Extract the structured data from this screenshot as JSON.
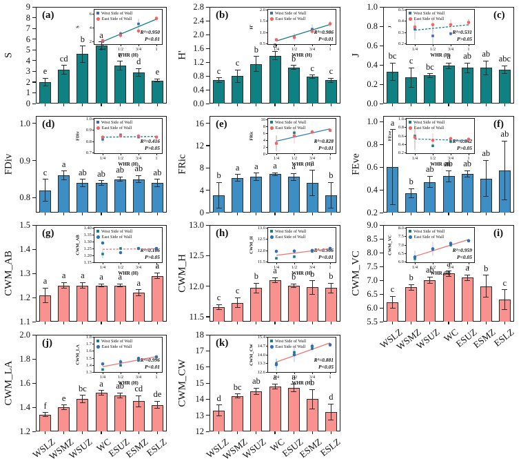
{
  "figure_title": "",
  "shared": {
    "categories": [
      "WSLZ",
      "WSMZ",
      "WSUZ",
      "WC",
      "ESUZ",
      "ESMZ",
      "ESLZ"
    ],
    "legend": {
      "west": "West Side of Wall",
      "east": "East Side of Wall"
    },
    "inset_xlabel": "WHR (H)",
    "inset_xticks": [
      "1/4",
      "1/2",
      "3/4",
      "1"
    ],
    "colors": {
      "teal_bar": "#0f8183",
      "blue_bar": "#3d8ec4",
      "salmon_bar": "#f9918f",
      "west_marker_blue": "#3a6ab2",
      "east_marker_red": "#f4635f",
      "west_marker_teal": "#0f8183",
      "east_marker_blue": "#2d6fb8",
      "trend_teal": "#0f8183",
      "trend_blue": "#2d7fc0",
      "trend_red": "#f4726f"
    }
  },
  "chart_data": [
    {
      "type": "bar",
      "id": "a",
      "panel_letter": "(a)",
      "label_pos": "left",
      "col": 0,
      "row": 0,
      "show_xlabels": false,
      "ylabel": "S",
      "ylim": [
        0,
        9
      ],
      "yticks": [
        "0",
        "1",
        "2",
        "3",
        "4",
        "5",
        "6",
        "7",
        "8",
        "9"
      ],
      "categories": [
        "WSLZ",
        "WSMZ",
        "WSUZ",
        "WC",
        "ESUZ",
        "ESMZ",
        "ESLZ"
      ],
      "values": [
        2.0,
        3.15,
        4.6,
        5.4,
        3.55,
        2.9,
        2.15
      ],
      "errors": [
        0.35,
        0.4,
        0.75,
        0.35,
        0.4,
        0.35,
        0.15
      ],
      "letters": [
        "e",
        "cd",
        "b",
        "a",
        "c",
        "d",
        "e"
      ],
      "bar_color": "#0f8183",
      "inset": {
        "pos": "right",
        "ylabel": "S",
        "ylim": [
          1.5,
          6.8
        ],
        "yticks": [
          "2",
          "4",
          "6"
        ],
        "r2_label": "R²=0.950",
        "p_label": "P<0.01",
        "line_style": "solid",
        "line_color": "#0f8183",
        "west_color": "#3a6ab2",
        "east_color": "#f4635f",
        "x": [
          0.25,
          0.5,
          0.75,
          1
        ],
        "west": [
          2.0,
          3.15,
          4.6,
          5.4
        ],
        "east": [
          2.15,
          2.9,
          3.55,
          5.4
        ]
      }
    },
    {
      "type": "bar",
      "id": "b",
      "panel_letter": "(b)",
      "label_pos": "left",
      "col": 1,
      "row": 0,
      "show_xlabels": false,
      "ylabel": "H'",
      "ylim": [
        0,
        2.8
      ],
      "yticks": [
        "0.0",
        "0.4",
        "0.8",
        "1.2",
        "1.6",
        "2.0",
        "2.4",
        "2.8"
      ],
      "categories": [
        "WSLZ",
        "WSMZ",
        "WSUZ",
        "WC",
        "ESUZ",
        "ESMZ",
        "ESLZ"
      ],
      "values": [
        0.68,
        0.8,
        1.15,
        1.39,
        1.05,
        0.78,
        0.68
      ],
      "errors": [
        0.07,
        0.18,
        0.22,
        0.12,
        0.06,
        0.05,
        0.06
      ],
      "letters": [
        "c",
        "c",
        "b",
        "a",
        "b",
        "c",
        "c"
      ],
      "bar_color": "#0f8183",
      "inset": {
        "pos": "right",
        "ylabel": "H'",
        "ylim": [
          0.45,
          2.05
        ],
        "yticks": [
          "0.5",
          "1.0",
          "1.5",
          "2.0"
        ],
        "r2_label": "R²=0.986",
        "p_label": "P<0.01",
        "line_style": "solid",
        "line_color": "#0f8183",
        "west_color": "#3a6ab2",
        "east_color": "#f4635f",
        "x": [
          0.25,
          0.5,
          0.75,
          1
        ],
        "west": [
          0.68,
          0.8,
          1.15,
          1.39
        ],
        "east": [
          0.68,
          0.78,
          1.05,
          1.39
        ]
      }
    },
    {
      "type": "bar",
      "id": "c",
      "panel_letter": "(c)",
      "label_pos": "right",
      "col": 2,
      "row": 0,
      "show_xlabels": false,
      "ylabel": "J",
      "ylim": [
        0,
        1.0
      ],
      "yticks": [
        "0.0",
        "0.2",
        "0.4",
        "0.6",
        "0.8",
        "1.0"
      ],
      "categories": [
        "WSLZ",
        "WSMZ",
        "WSUZ",
        "WC",
        "ESUZ",
        "ESMZ",
        "ESLZ"
      ],
      "values": [
        0.33,
        0.27,
        0.29,
        0.39,
        0.37,
        0.37,
        0.35
      ],
      "errors": [
        0.09,
        0.1,
        0.02,
        0.03,
        0.05,
        0.07,
        0.04
      ],
      "letters": [
        "bc",
        "c",
        "bc",
        "a",
        "ab",
        "ab",
        "abc"
      ],
      "bar_color": "#0f8183",
      "inset": {
        "pos": "left",
        "ylabel": "J",
        "ylim": [
          0.19,
          0.51
        ],
        "yticks": [
          "0.2",
          "0.3",
          "0.4",
          "0.5"
        ],
        "r2_label": "R²=0.531",
        "p_label": "P>0.05",
        "line_style": "dashed",
        "line_color": "#0f8183",
        "west_color": "#3a6ab2",
        "east_color": "#f4635f",
        "x": [
          0.25,
          0.5,
          0.75,
          1
        ],
        "west": [
          0.33,
          0.27,
          0.29,
          0.39
        ],
        "east": [
          0.35,
          0.37,
          0.37,
          0.39
        ]
      }
    },
    {
      "type": "bar",
      "id": "d",
      "panel_letter": "(d)",
      "label_pos": "left",
      "col": 0,
      "row": 1,
      "show_xlabels": false,
      "ylabel": "FDiv",
      "ylim": [
        0.76,
        1.02
      ],
      "yticks": [
        "0.8",
        "0.9",
        "1.0"
      ],
      "categories": [
        "WSLZ",
        "WSMZ",
        "WSUZ",
        "WC",
        "ESUZ",
        "ESMZ",
        "ESLZ"
      ],
      "values": [
        0.82,
        0.86,
        0.84,
        0.84,
        0.85,
        0.85,
        0.84
      ],
      "errors": [
        0.03,
        0.012,
        0.01,
        0.006,
        0.006,
        0.01,
        0.01
      ],
      "letters": [
        "c",
        "a",
        "ab",
        "ab",
        "ab",
        "ab",
        "ab"
      ],
      "bar_color": "#3d8ec4",
      "inset": {
        "pos": "right",
        "ylabel": "FDiv",
        "ylim": [
          0.69,
          1.01
        ],
        "yticks": [
          "0.7",
          "0.8",
          "0.9",
          "1.0"
        ],
        "r2_label": "R²=0.416",
        "p_label": "P>0.05",
        "line_style": "dashed",
        "line_color": "#0f8183",
        "west_color": "#3a6ab2",
        "east_color": "#f4635f",
        "x": [
          0.25,
          0.5,
          0.75,
          1
        ],
        "west": [
          0.82,
          0.86,
          0.84,
          0.84
        ],
        "east": [
          0.84,
          0.85,
          0.85,
          0.84
        ]
      }
    },
    {
      "type": "bar",
      "id": "e",
      "panel_letter": "(e)",
      "label_pos": "left",
      "col": 1,
      "row": 1,
      "show_xlabels": false,
      "ylabel": "FRic",
      "ylim": [
        0,
        17.3
      ],
      "yticks": [
        "0",
        "4",
        "8",
        "12",
        "16"
      ],
      "categories": [
        "WSLZ",
        "WSMZ",
        "WSUZ",
        "WC",
        "ESUZ",
        "ESMZ",
        "ESLZ"
      ],
      "values": [
        3.1,
        6.2,
        6.4,
        6.9,
        6.4,
        5.3,
        3.1
      ],
      "errors": [
        2.3,
        0.6,
        0.7,
        0.25,
        0.6,
        2.3,
        2.3
      ],
      "letters": [
        "b",
        "a",
        "a",
        "a",
        "a",
        "a",
        "b"
      ],
      "bar_color": "#3d8ec4",
      "inset": {
        "pos": "right",
        "ylabel": "FRic",
        "ylim": [
          0,
          10.5
        ],
        "yticks": [
          "0",
          "2",
          "4",
          "6",
          "8",
          "10"
        ],
        "r2_label": "R²=0.828",
        "p_label": "P<0.01",
        "line_style": "solid",
        "line_color": "#2d7fc0",
        "west_color": "#0f8183",
        "east_color": "#f4635f",
        "x": [
          0.25,
          0.5,
          0.75,
          1
        ],
        "west": [
          3.1,
          6.2,
          6.4,
          6.9
        ],
        "east": [
          3.1,
          5.3,
          6.4,
          6.9
        ]
      }
    },
    {
      "type": "bar",
      "id": "f",
      "panel_letter": "(f)",
      "label_pos": "right",
      "col": 2,
      "row": 1,
      "show_xlabels": false,
      "ylabel": "FEve",
      "ylim": [
        0.2,
        1.05
      ],
      "yticks": [
        "0.2",
        "0.4",
        "0.6",
        "0.8",
        "1.0"
      ],
      "categories": [
        "WSLZ",
        "WSMZ",
        "WSUZ",
        "WC",
        "ESUZ",
        "ESMZ",
        "ESLZ"
      ],
      "values": [
        0.6,
        0.37,
        0.47,
        0.52,
        0.54,
        0.5,
        0.57
      ],
      "errors": [
        0.33,
        0.04,
        0.05,
        0.05,
        0.03,
        0.16,
        0.26
      ],
      "letters": [
        "a",
        "b",
        "ab",
        "ab",
        "ab",
        "ab",
        "ab"
      ],
      "bar_color": "#3d8ec4",
      "inset": {
        "pos": "left",
        "ylabel": "FEve",
        "ylim": [
          0.18,
          1.02
        ],
        "yticks": [
          "0.2",
          "0.4",
          "0.6",
          "0.8",
          "1.0"
        ],
        "r2_label": "R²=0.842",
        "p_label": "P>0.05",
        "line_style": "dashed",
        "line_color": "#2d7fc0",
        "west_color": "#0f8183",
        "east_color": "#f4635f",
        "x": [
          0.25,
          0.5,
          0.75,
          1
        ],
        "west": [
          0.6,
          0.37,
          0.47,
          0.52
        ],
        "east": [
          0.57,
          0.5,
          0.54,
          0.52
        ]
      }
    },
    {
      "type": "bar",
      "id": "g",
      "panel_letter": "(g)",
      "label_pos": "left",
      "col": 0,
      "row": 2,
      "show_xlabels": false,
      "ylabel": "CWM_AB",
      "ylim": [
        1.1,
        1.5
      ],
      "yticks": [
        "1.1",
        "1.2",
        "1.3",
        "1.4",
        "1.5"
      ],
      "categories": [
        "WSLZ",
        "WSMZ",
        "WSUZ",
        "WC",
        "ESUZ",
        "ESMZ",
        "ESLZ"
      ],
      "values": [
        1.21,
        1.25,
        1.25,
        1.25,
        1.25,
        1.22,
        1.29
      ],
      "errors": [
        0.03,
        0.012,
        0.012,
        0.006,
        0.006,
        0.012,
        0.012
      ],
      "letters": [
        "a",
        "a",
        "a",
        "a",
        "a",
        "a",
        "a"
      ],
      "bar_color": "#f9918f",
      "inset": {
        "pos": "right",
        "ylabel": "CWM_AB",
        "ylim": [
          1.145,
          1.405
        ],
        "yticks": [
          "1.15",
          "1.20",
          "1.25",
          "1.30",
          "1.35",
          "1.40"
        ],
        "r2_label": "R²=0.166",
        "p_label": "P>0.05",
        "line_style": "dashed",
        "line_color": "#f4726f",
        "west_color": "#0f8183",
        "east_color": "#2d6fb8",
        "x": [
          0.25,
          0.5,
          0.75,
          1
        ],
        "west": [
          1.21,
          1.25,
          1.25,
          1.25
        ],
        "east": [
          1.29,
          1.22,
          1.25,
          1.25
        ]
      }
    },
    {
      "type": "bar",
      "id": "h",
      "panel_letter": "(h)",
      "label_pos": "left",
      "col": 1,
      "row": 2,
      "show_xlabels": false,
      "ylabel": "CWM_H",
      "ylim": [
        11.42,
        13.0
      ],
      "yticks": [
        "11.5",
        "12.0",
        "12.5",
        "13.0"
      ],
      "categories": [
        "WSLZ",
        "WSMZ",
        "WSUZ",
        "WC",
        "ESUZ",
        "ESMZ",
        "ESLZ"
      ],
      "values": [
        11.66,
        11.73,
        11.97,
        12.1,
        12.01,
        11.98,
        11.97
      ],
      "errors": [
        0.04,
        0.08,
        0.08,
        0.04,
        0.03,
        0.11,
        0.08
      ],
      "letters": [
        "c",
        "c",
        "b",
        "a",
        "b",
        "b",
        "b"
      ],
      "bar_color": "#f9918f",
      "inset": {
        "pos": "right",
        "ylabel": "CWM_H",
        "ylim": [
          11.45,
          13.05
        ],
        "yticks": [
          "11.5",
          "12.0",
          "12.5",
          "13.0"
        ],
        "r2_label": "R²=0.986",
        "p_label": "P<0.01",
        "line_style": "solid",
        "line_color": "#f4726f",
        "west_color": "#0f8183",
        "east_color": "#2d6fb8",
        "x": [
          0.25,
          0.5,
          0.75,
          1
        ],
        "west": [
          11.66,
          11.73,
          11.97,
          12.1
        ],
        "east": [
          11.97,
          11.98,
          12.01,
          12.1
        ]
      }
    },
    {
      "type": "bar",
      "id": "i",
      "panel_letter": "(i)",
      "label_pos": "right",
      "col": 2,
      "row": 2,
      "show_xlabels": true,
      "ylabel": "CWM_VC",
      "ylim": [
        5.5,
        9.0
      ],
      "yticks": [
        "5.5",
        "6.0",
        "6.5",
        "7.0",
        "7.5",
        "8.0",
        "8.5",
        "9.0"
      ],
      "categories": [
        "WSLZ",
        "WSMZ",
        "WSUZ",
        "WC",
        "ESUZ",
        "ESMZ",
        "ESLZ"
      ],
      "values": [
        6.2,
        6.75,
        7.0,
        7.25,
        7.1,
        6.78,
        6.3
      ],
      "errors": [
        0.22,
        0.1,
        0.12,
        0.1,
        0.1,
        0.4,
        0.36
      ],
      "letters": [
        "c",
        "b",
        "ab",
        "a",
        "a",
        "b",
        "c"
      ],
      "bar_color": "#f9918f",
      "inset": {
        "pos": "left",
        "ylabel": "CWM_VC",
        "ylim": [
          5.95,
          8.05
        ],
        "yticks": [
          "6.0",
          "6.5",
          "7.0",
          "7.5",
          "8.0"
        ],
        "r2_label": "R²=0.959",
        "p_label": "P<0.05",
        "line_style": "solid",
        "line_color": "#f4726f",
        "west_color": "#0f8183",
        "east_color": "#2d6fb8",
        "x": [
          0.25,
          0.5,
          0.75,
          1
        ],
        "west": [
          6.2,
          6.75,
          7.0,
          7.25
        ],
        "east": [
          6.3,
          6.78,
          7.1,
          7.25
        ]
      }
    },
    {
      "type": "bar",
      "id": "j",
      "panel_letter": "(j)",
      "label_pos": "left",
      "col": 0,
      "row": 3,
      "show_xlabels": true,
      "ylabel": "CWM_LA",
      "ylim": [
        1.2,
        2.0
      ],
      "yticks": [
        "1.2",
        "1.4",
        "1.6",
        "1.8",
        "2.0"
      ],
      "categories": [
        "WSLZ",
        "WSMZ",
        "WSUZ",
        "WC",
        "ESUZ",
        "ESMZ",
        "ESLZ"
      ],
      "values": [
        1.34,
        1.4,
        1.47,
        1.52,
        1.5,
        1.45,
        1.42
      ],
      "errors": [
        0.015,
        0.02,
        0.03,
        0.02,
        0.02,
        0.045,
        0.03
      ],
      "letters": [
        "f",
        "e",
        "bc",
        "a",
        "ab",
        "cd",
        "de"
      ],
      "bar_color": "#f9918f",
      "inset": {
        "pos": "right",
        "ylabel": "CWM_LA",
        "ylim": [
          1.295,
          1.805
        ],
        "yticks": [
          "1.3",
          "1.4",
          "1.5",
          "1.6",
          "1.7",
          "1.8"
        ],
        "r2_label": "R²=0.996",
        "p_label": "P<0.01",
        "line_style": "solid",
        "line_color": "#f4726f",
        "west_color": "#0f8183",
        "east_color": "#2d6fb8",
        "x": [
          0.25,
          0.5,
          0.75,
          1
        ],
        "west": [
          1.34,
          1.4,
          1.47,
          1.52
        ],
        "east": [
          1.42,
          1.45,
          1.5,
          1.52
        ]
      }
    },
    {
      "type": "bar",
      "id": "k",
      "panel_letter": "(k)",
      "label_pos": "left",
      "col": 1,
      "row": 3,
      "show_xlabels": true,
      "ylabel": "CWM_CW",
      "ylim": [
        12,
        18
      ],
      "yticks": [
        "12",
        "13",
        "14",
        "15",
        "16",
        "17",
        "18"
      ],
      "categories": [
        "WSLZ",
        "WSMZ",
        "WSUZ",
        "WC",
        "ESUZ",
        "ESMZ",
        "ESLZ"
      ],
      "values": [
        13.3,
        14.2,
        14.5,
        14.8,
        14.7,
        14.0,
        13.2
      ],
      "errors": [
        0.35,
        0.12,
        0.2,
        0.15,
        0.25,
        0.6,
        0.5
      ],
      "letters": [
        "d",
        "bc",
        "ab",
        "a",
        "a",
        "b",
        "d"
      ],
      "bar_color": "#f9918f",
      "inset": {
        "pos": "right",
        "ylabel": "CWM_CW",
        "ylim": [
          12.55,
          15.45
        ],
        "yticks": [
          "12.6",
          "13.3",
          "14.0",
          "14.7",
          "15.4"
        ],
        "r2_label": "R²=0.881",
        "p_label": "P<0.05",
        "line_style": "solid",
        "line_color": "#f4726f",
        "west_color": "#0f8183",
        "east_color": "#2d6fb8",
        "x": [
          0.25,
          0.5,
          0.75,
          1
        ],
        "west": [
          13.3,
          14.2,
          14.5,
          14.8
        ],
        "east": [
          13.2,
          14.0,
          14.7,
          14.8
        ]
      }
    }
  ]
}
